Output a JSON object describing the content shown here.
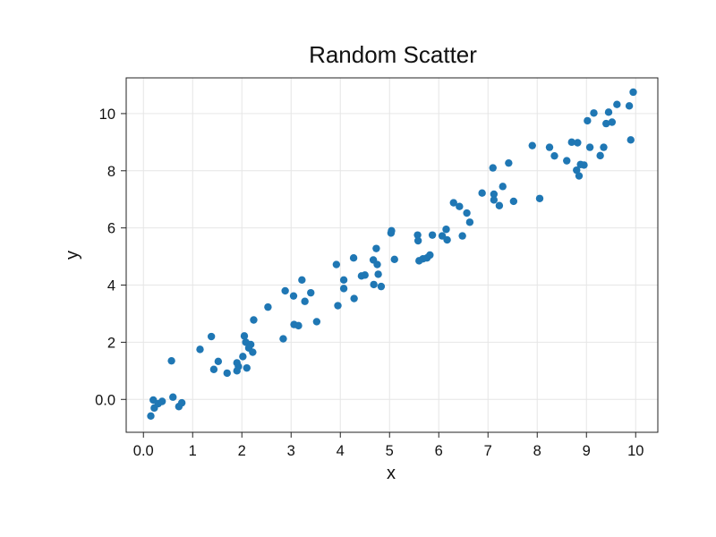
{
  "chart_data": {
    "type": "scatter",
    "title": "Random Scatter",
    "xlabel": "x",
    "ylabel": "y",
    "xlim": [
      -0.35,
      10.45
    ],
    "ylim": [
      -1.15,
      11.25
    ],
    "x_ticks": [
      0,
      1,
      2,
      3,
      4,
      5,
      6,
      7,
      8,
      9,
      10
    ],
    "x_tick_labels": [
      "0.0",
      "1",
      "2",
      "3",
      "4",
      "5",
      "6",
      "7",
      "8",
      "9",
      "10"
    ],
    "y_ticks": [
      0,
      2,
      4,
      6,
      8,
      10
    ],
    "y_tick_labels": [
      "0.0",
      "2",
      "4",
      "6",
      "8",
      "10"
    ],
    "grid": true,
    "marker_color": "#1f77b4",
    "series": [
      {
        "x": [
          0.15,
          0.2,
          0.22,
          0.3,
          0.38,
          0.57,
          0.6,
          0.72,
          0.78,
          1.15,
          1.38,
          1.43,
          1.52,
          1.7,
          1.9,
          1.9,
          1.93,
          2.02,
          2.05,
          2.08,
          2.1,
          2.14,
          2.18,
          2.22,
          2.24,
          2.53,
          2.84,
          2.88,
          3.05,
          3.06,
          3.15,
          3.22,
          3.28,
          3.4,
          3.52,
          3.92,
          3.95,
          4.07,
          4.07,
          4.27,
          4.28,
          4.43,
          4.5,
          4.67,
          4.68,
          4.73,
          4.75,
          4.77,
          4.83,
          5.03,
          5.04,
          5.1,
          5.57,
          5.58,
          5.6,
          5.68,
          5.76,
          5.82,
          5.87,
          6.07,
          6.15,
          6.17,
          6.3,
          6.42,
          6.48,
          6.57,
          6.63,
          6.88,
          7.1,
          7.12,
          7.12,
          7.23,
          7.3,
          7.42,
          7.52,
          7.9,
          8.05,
          8.25,
          8.35,
          8.6,
          8.7,
          8.8,
          8.82,
          8.85,
          8.88,
          8.95,
          9.02,
          9.07,
          9.15,
          9.28,
          9.35,
          9.4,
          9.45,
          9.52,
          9.62,
          9.87,
          9.9,
          9.95
        ],
        "y": [
          -0.58,
          -0.02,
          -0.3,
          -0.15,
          -0.07,
          1.35,
          0.08,
          -0.25,
          -0.12,
          1.75,
          2.2,
          1.05,
          1.33,
          0.92,
          1.28,
          1.0,
          1.15,
          1.5,
          2.22,
          2.0,
          1.1,
          1.8,
          1.92,
          1.65,
          2.78,
          3.23,
          2.12,
          3.8,
          3.62,
          2.62,
          2.58,
          4.18,
          3.43,
          3.73,
          2.72,
          4.72,
          3.28,
          4.18,
          3.88,
          4.95,
          3.53,
          4.32,
          4.35,
          4.88,
          4.02,
          5.28,
          4.72,
          4.38,
          3.95,
          5.82,
          5.9,
          4.9,
          5.75,
          5.55,
          4.85,
          4.92,
          4.95,
          5.05,
          5.75,
          5.72,
          5.95,
          5.58,
          6.88,
          6.75,
          5.72,
          6.52,
          6.2,
          7.22,
          8.1,
          7.18,
          6.98,
          6.78,
          7.45,
          8.27,
          6.93,
          8.88,
          7.03,
          8.82,
          8.52,
          8.35,
          9.0,
          8.02,
          8.98,
          7.82,
          8.22,
          8.2,
          9.75,
          8.82,
          10.02,
          8.53,
          8.82,
          9.65,
          10.05,
          9.7,
          10.32,
          10.27,
          9.08,
          10.75
        ]
      }
    ]
  }
}
